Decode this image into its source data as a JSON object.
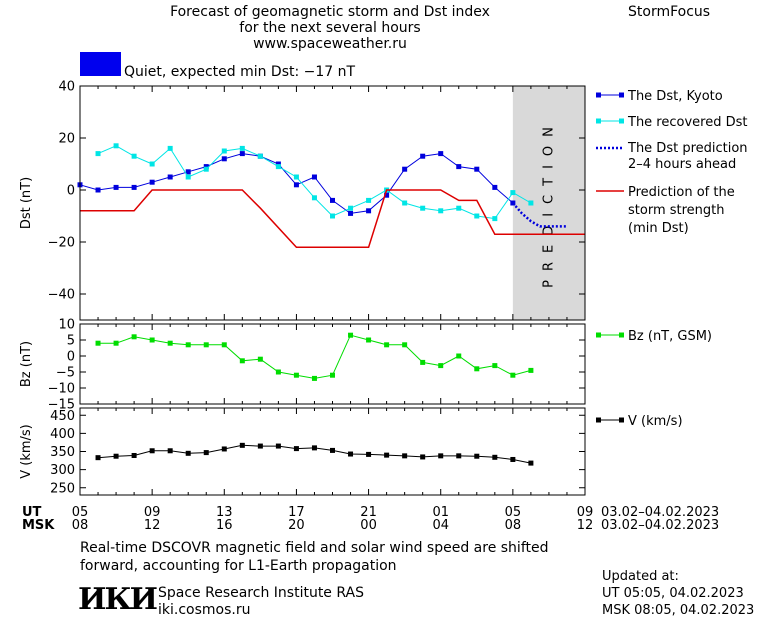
{
  "header": {
    "title_line1": "Forecast of geomagnetic storm and Dst index",
    "title_line2": "for the next several hours",
    "title_line3": "www.spaceweather.ru",
    "brand": "StormFocus",
    "status_color": "#0000ee",
    "status_text": "Quiet, expected min Dst: −17 nT"
  },
  "legend": {
    "dst_kyoto": "The Dst, Kyoto",
    "dst_recovered": "The recovered Dst",
    "dst_prediction_1": "The Dst prediction",
    "dst_prediction_2": "2–4 hours ahead",
    "storm_1": "Prediction of the",
    "storm_2": "storm strength",
    "storm_3": "(min Dst)",
    "bz": "Bz (nT, GSM)",
    "v": "V (km/s)"
  },
  "axes": {
    "ut_label": "UT",
    "msk_label": "MSK",
    "ut_ticks": [
      "05",
      "09",
      "13",
      "17",
      "21",
      "01",
      "05",
      "09"
    ],
    "msk_ticks": [
      "08",
      "12",
      "16",
      "20",
      "00",
      "04",
      "08",
      "12"
    ],
    "date_range_ut": "03.02–04.02.2023",
    "date_range_msk": "03.02–04.02.2023"
  },
  "footer": {
    "note_line1": "Real-time DSCOVR magnetic field and solar wind speed are shifted",
    "note_line2": "forward, accounting for L1-Earth propagation",
    "logo_text": "ИКИ",
    "institute": "Space Research Institute RAS",
    "site": "iki.cosmos.ru",
    "updated_label": "Updated at:",
    "updated_ut": "UT   05:05, 04.02.2023",
    "updated_msk": "MSK 08:05, 04.02.2023"
  },
  "chart_data": [
    {
      "type": "line",
      "ylabel": "Dst (nT)",
      "ylim": [
        -50,
        40
      ],
      "yticks": [
        40,
        20,
        0,
        -20,
        -40
      ],
      "xlim": [
        0,
        28
      ],
      "prediction_region": {
        "from": 24,
        "to": 28,
        "label": "PREDICTION",
        "color": "#d9d9d9"
      },
      "series": [
        {
          "name": "The Dst, Kyoto",
          "color": "#0000dd",
          "marker": "square",
          "x": [
            0,
            1,
            2,
            3,
            4,
            5,
            6,
            7,
            8,
            9,
            10,
            11,
            12,
            13,
            14,
            15,
            16,
            17,
            18,
            19,
            20,
            21,
            22,
            23,
            24
          ],
          "values": [
            2,
            0,
            1,
            1,
            3,
            5,
            7,
            9,
            12,
            14,
            13,
            10,
            2,
            5,
            -4,
            -9,
            -8,
            -2,
            8,
            13,
            14,
            9,
            8,
            1,
            -5
          ]
        },
        {
          "name": "The recovered Dst",
          "color": "#00e5e5",
          "marker": "square",
          "x": [
            1,
            2,
            3,
            4,
            5,
            6,
            7,
            8,
            9,
            10,
            11,
            12,
            13,
            14,
            15,
            16,
            17,
            18,
            19,
            20,
            21,
            22,
            23,
            24,
            25
          ],
          "values": [
            14,
            17,
            13,
            10,
            16,
            5,
            8,
            15,
            16,
            13,
            9,
            5,
            -3,
            -10,
            -7,
            -4,
            0,
            -5,
            -7,
            -8,
            -7,
            -10,
            -11,
            -1,
            -5
          ]
        },
        {
          "name": "The Dst prediction 2–4 hours ahead",
          "color": "#0000dd",
          "style": "dotted",
          "x": [
            24,
            24.5,
            25,
            25.5,
            26,
            27
          ],
          "values": [
            -5,
            -9,
            -12,
            -14,
            -14,
            -14
          ]
        },
        {
          "name": "Prediction of the storm strength (min Dst)",
          "color": "#dd0000",
          "style": "step",
          "x": [
            0,
            3,
            4,
            9,
            10,
            12,
            16,
            17,
            20,
            21,
            22,
            23,
            28
          ],
          "values": [
            -8,
            -8,
            0,
            0,
            -7,
            -22,
            -22,
            0,
            0,
            -4,
            -4,
            -17,
            -17
          ]
        }
      ]
    },
    {
      "type": "line",
      "ylabel": "Bz (nT)",
      "ylim": [
        -15,
        10
      ],
      "yticks": [
        10,
        5,
        0,
        -5,
        -10,
        -15
      ],
      "xlim": [
        0,
        28
      ],
      "series": [
        {
          "name": "Bz (nT, GSM)",
          "color": "#00dd00",
          "marker": "square",
          "x": [
            1,
            2,
            3,
            4,
            5,
            6,
            7,
            8,
            9,
            10,
            11,
            12,
            13,
            14,
            15,
            16,
            17,
            18,
            19,
            20,
            21,
            22,
            23,
            24,
            25
          ],
          "values": [
            4,
            4,
            6,
            5,
            4,
            3.5,
            3.5,
            3.5,
            -1.5,
            -1,
            -5,
            -6,
            -7,
            -6,
            6.5,
            5,
            3.5,
            3.5,
            -2,
            -3,
            0,
            -4,
            -3,
            -6,
            -4.5
          ]
        }
      ]
    },
    {
      "type": "line",
      "ylabel": "V (km/s)",
      "ylim": [
        230,
        470
      ],
      "yticks": [
        450,
        400,
        350,
        300,
        250
      ],
      "xlim": [
        0,
        28
      ],
      "series": [
        {
          "name": "V (km/s)",
          "color": "#000000",
          "marker": "square",
          "x": [
            1,
            2,
            3,
            4,
            5,
            6,
            7,
            8,
            9,
            10,
            11,
            12,
            13,
            14,
            15,
            16,
            17,
            18,
            19,
            20,
            21,
            22,
            23,
            24,
            25
          ],
          "values": [
            333,
            337,
            339,
            352,
            352,
            345,
            347,
            357,
            367,
            365,
            365,
            358,
            360,
            353,
            343,
            342,
            340,
            338,
            335,
            338,
            338,
            337,
            334,
            328,
            318
          ]
        }
      ]
    }
  ]
}
